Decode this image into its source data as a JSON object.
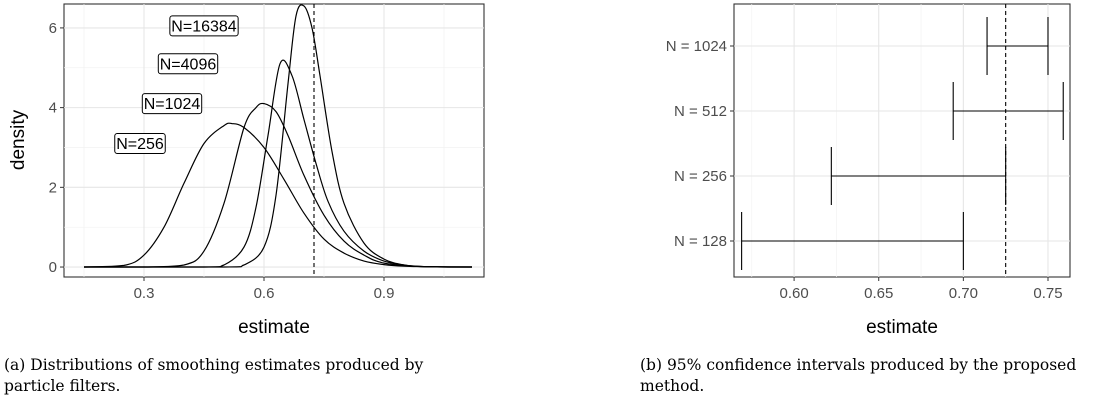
{
  "chart_data": [
    {
      "type": "line",
      "panel": "(a)",
      "xlabel": "estimate",
      "ylabel": "density",
      "xlim": [
        0.1,
        1.15
      ],
      "ylim": [
        -0.25,
        6.6
      ],
      "x_ticks": [
        0.3,
        0.6,
        0.9
      ],
      "y_ticks": [
        0,
        2,
        4,
        6
      ],
      "grid": true,
      "reference_line": 0.725,
      "series": [
        {
          "name": "N=256",
          "x": [
            0.15,
            0.25,
            0.3,
            0.35,
            0.4,
            0.45,
            0.5,
            0.52,
            0.55,
            0.6,
            0.65,
            0.7,
            0.75,
            0.8,
            0.85,
            0.9,
            0.95,
            1.0,
            1.12
          ],
          "y": [
            0,
            0.04,
            0.3,
            1.0,
            2.1,
            3.1,
            3.55,
            3.6,
            3.5,
            3.0,
            2.2,
            1.35,
            0.7,
            0.35,
            0.15,
            0.06,
            0.02,
            0.01,
            0
          ]
        },
        {
          "name": "N=1024",
          "x": [
            0.15,
            0.3,
            0.4,
            0.45,
            0.5,
            0.55,
            0.58,
            0.6,
            0.63,
            0.66,
            0.7,
            0.75,
            0.8,
            0.85,
            0.9,
            1.0,
            1.12
          ],
          "y": [
            0,
            0,
            0.05,
            0.4,
            1.6,
            3.5,
            4.0,
            4.1,
            3.9,
            3.3,
            2.3,
            1.3,
            0.65,
            0.3,
            0.1,
            0.01,
            0
          ]
        },
        {
          "name": "N=4096",
          "x": [
            0.15,
            0.45,
            0.5,
            0.55,
            0.58,
            0.61,
            0.64,
            0.67,
            0.7,
            0.73,
            0.76,
            0.8,
            0.85,
            0.9,
            0.95,
            1.0,
            1.12
          ],
          "y": [
            0,
            0,
            0.05,
            0.5,
            1.5,
            3.3,
            5.1,
            4.8,
            3.7,
            2.6,
            1.65,
            0.9,
            0.4,
            0.15,
            0.05,
            0.01,
            0
          ]
        },
        {
          "name": "N=16384",
          "x": [
            0.15,
            0.5,
            0.55,
            0.6,
            0.63,
            0.66,
            0.68,
            0.7,
            0.72,
            0.74,
            0.77,
            0.8,
            0.85,
            0.9,
            0.95,
            1.0,
            1.12
          ],
          "y": [
            0,
            0,
            0.05,
            0.5,
            1.8,
            4.6,
            6.3,
            6.55,
            6.0,
            4.8,
            2.9,
            1.6,
            0.6,
            0.2,
            0.05,
            0.01,
            0
          ]
        }
      ],
      "labels": [
        "N=16384",
        "N=4096",
        "N=1024",
        "N=256"
      ],
      "caption": "(a) Distributions of smoothing estimates produced by particle filters."
    },
    {
      "type": "errorbar",
      "panel": "(b)",
      "xlabel": "estimate",
      "xlim": [
        0.5645,
        0.763
      ],
      "x_ticks": [
        0.6,
        0.65,
        0.7,
        0.75
      ],
      "x_tick_labels": [
        "0.60",
        "0.65",
        "0.70",
        "0.75"
      ],
      "grid": true,
      "reference_line": 0.725,
      "categories": [
        "N = 1024",
        "N = 512",
        "N = 256",
        "N = 128"
      ],
      "intervals": [
        {
          "lo": 0.714,
          "hi": 0.75
        },
        {
          "lo": 0.694,
          "hi": 0.759
        },
        {
          "lo": 0.622,
          "hi": 0.725
        },
        {
          "lo": 0.569,
          "hi": 0.7
        }
      ],
      "caption": "(b) 95% confidence intervals produced by the proposed method."
    }
  ]
}
